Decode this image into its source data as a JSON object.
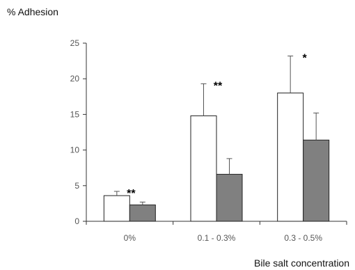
{
  "chart_data": {
    "type": "bar",
    "title": "",
    "ylabel": "% Adhesion",
    "xlabel": "Bile salt concentration",
    "categories": [
      "0%",
      "0.1 - 0.3%",
      "0.3 - 0.5%"
    ],
    "ylim": [
      0,
      25
    ],
    "yticks": [
      0,
      5,
      10,
      15,
      20,
      25
    ],
    "grid": false,
    "legend": "none",
    "series": [
      {
        "values": [
          3.6,
          14.8,
          18.0
        ],
        "errors": [
          0.6,
          4.5,
          5.2
        ],
        "color": "#ffffff",
        "annotations": [
          "**",
          "**",
          "*"
        ]
      },
      {
        "values": [
          2.3,
          6.6,
          11.4
        ],
        "errors": [
          0.4,
          2.2,
          3.8
        ],
        "color": "#808080",
        "annotations": [
          "",
          "",
          ""
        ]
      }
    ]
  }
}
